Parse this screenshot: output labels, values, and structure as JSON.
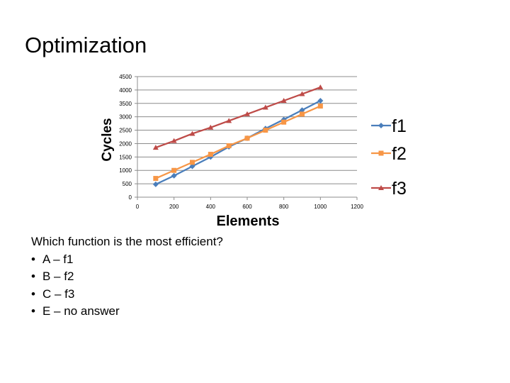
{
  "slide": {
    "title": "Optimization",
    "question": "Which function is the most efficient?",
    "bullet_symbol": "•",
    "answers": [
      "A – f1",
      "B – f2",
      "C – f3",
      "E – no answer"
    ]
  },
  "chart_data": {
    "type": "line",
    "title": "",
    "xlabel": "Elements",
    "ylabel": "Cycles",
    "xlim": [
      0,
      1200
    ],
    "ylim": [
      0,
      4500
    ],
    "xticks": [
      0,
      200,
      400,
      600,
      800,
      1000,
      1200
    ],
    "xtick_labels": [
      "0",
      "200",
      "400",
      "600",
      "800",
      "1000",
      "1200"
    ],
    "yticks": [
      0,
      500,
      1000,
      1500,
      2000,
      2500,
      3000,
      3500,
      4000,
      4500
    ],
    "ytick_labels": [
      "0",
      "500",
      "1000",
      "1500",
      "2000",
      "2500",
      "3000",
      "3500",
      "4000",
      "4500"
    ],
    "grid": "horizontal",
    "legend_position": "right",
    "x": [
      100,
      200,
      300,
      400,
      500,
      600,
      700,
      800,
      900,
      1000
    ],
    "series": [
      {
        "name": "f1",
        "color": "#4a7ebb",
        "marker": "diamond",
        "values": [
          480,
          800,
          1150,
          1500,
          1880,
          2200,
          2560,
          2900,
          3250,
          3600
        ]
      },
      {
        "name": "f2",
        "color": "#f79646",
        "marker": "square",
        "values": [
          700,
          1000,
          1300,
          1600,
          1920,
          2200,
          2500,
          2800,
          3100,
          3400
        ]
      },
      {
        "name": "f3",
        "color": "#be4b48",
        "marker": "triangle",
        "values": [
          1850,
          2100,
          2370,
          2600,
          2850,
          3100,
          3350,
          3600,
          3850,
          4100
        ]
      }
    ]
  }
}
